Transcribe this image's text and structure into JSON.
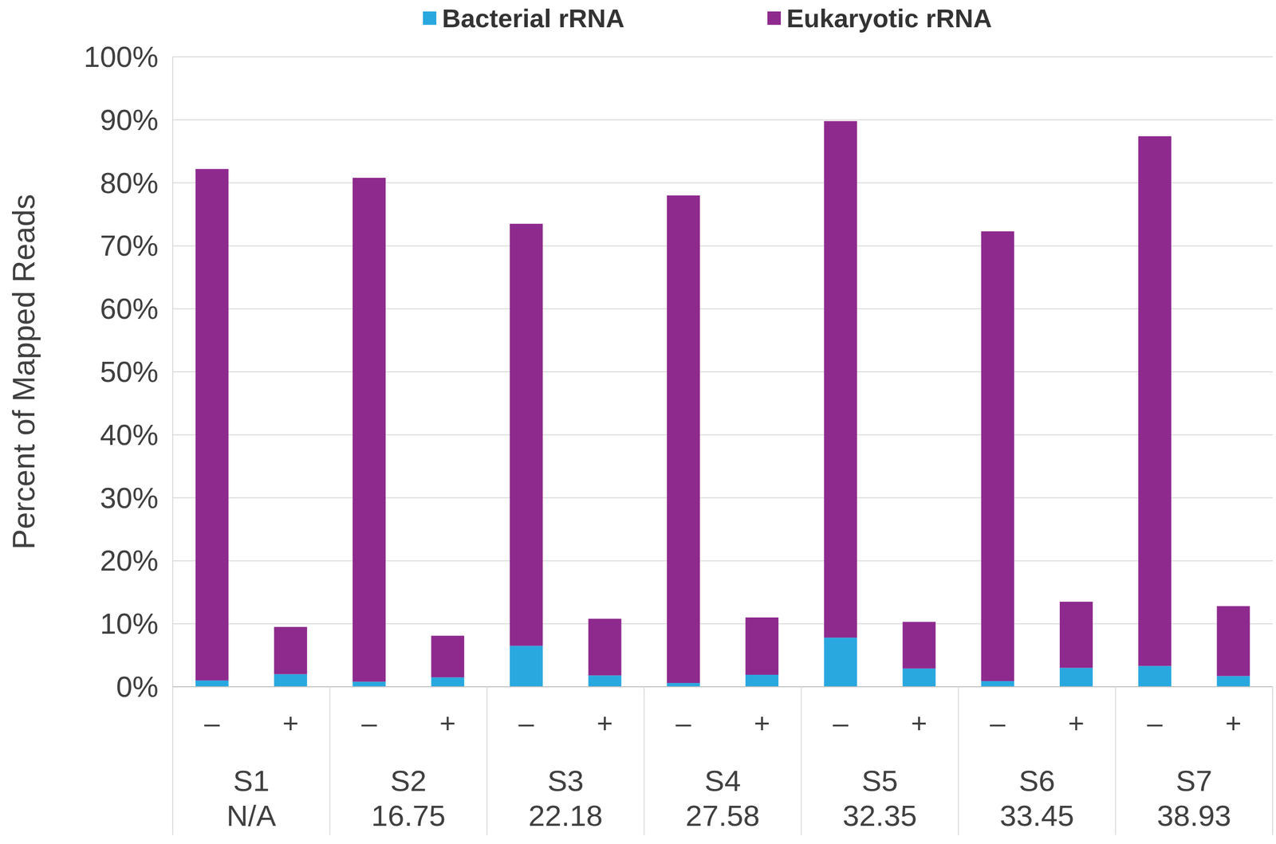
{
  "chart_data": {
    "type": "bar",
    "stacked": true,
    "grid": true,
    "legend": "top",
    "y_label": "Percent of Mapped Reads",
    "categories": [
      "–",
      "+",
      "–",
      "+",
      "–",
      "+",
      "–",
      "+",
      "–",
      "+",
      "–",
      "+",
      "–",
      "+"
    ],
    "groups": [
      {
        "name": "S1",
        "label": "N/A"
      },
      {
        "name": "S2",
        "value": 16.75
      },
      {
        "name": "S3",
        "value": 22.18
      },
      {
        "name": "S4",
        "value": 27.58
      },
      {
        "name": "S5",
        "value": 32.35
      },
      {
        "name": "S6",
        "value": 33.45
      },
      {
        "name": "S7",
        "value": 38.93
      }
    ],
    "series": [
      {
        "name": "Bacterial rRNA",
        "color": "#29a8e0",
        "values": [
          1.0,
          2.0,
          0.8,
          1.5,
          6.5,
          1.8,
          0.6,
          1.9,
          7.8,
          2.9,
          0.9,
          3.0,
          3.3,
          1.7
        ]
      },
      {
        "name": "Eukaryotic rRNA",
        "color": "#8e2a8e",
        "values": [
          81.2,
          7.5,
          80.0,
          6.6,
          67.0,
          9.0,
          77.4,
          9.1,
          82.0,
          7.4,
          71.4,
          10.5,
          84.1,
          11.1
        ]
      }
    ],
    "ylim": [
      0,
      100
    ],
    "yticks": [
      {
        "value": 0,
        "label": "0%"
      },
      {
        "value": 10,
        "label": "10%"
      },
      {
        "value": 20,
        "label": "20%"
      },
      {
        "value": 30,
        "label": "30%"
      },
      {
        "value": 40,
        "label": "40%"
      },
      {
        "value": 50,
        "label": "50%"
      },
      {
        "value": 60,
        "label": "60%"
      },
      {
        "value": 70,
        "label": "70%"
      },
      {
        "value": 80,
        "label": "80%"
      },
      {
        "value": 90,
        "label": "90%"
      },
      {
        "value": 100,
        "label": "100%"
      }
    ]
  }
}
